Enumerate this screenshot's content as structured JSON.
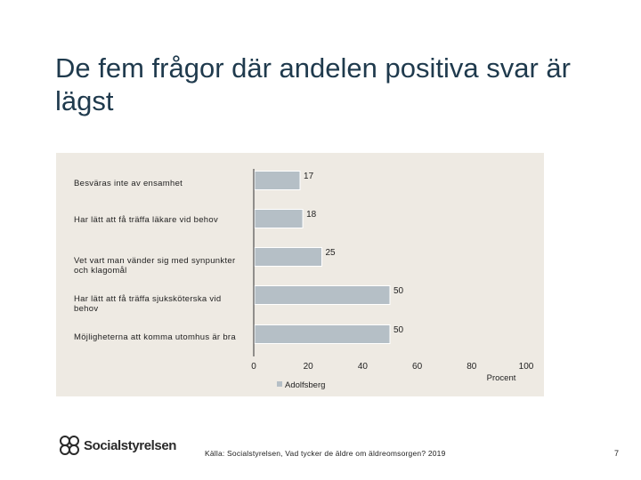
{
  "slide": {
    "title": "De fem frågor där andelen positiva svar är lägst",
    "source": "Källa: Socialstyrelsen, Vad tycker de äldre om äldreomsorgen? 2019",
    "page_number": "7",
    "logo_text": "Socialstyrelsen"
  },
  "chart_data": {
    "type": "bar",
    "orientation": "horizontal",
    "categories": [
      "Besväras inte av ensamhet",
      "Har lätt att få träffa läkare vid behov",
      "Vet vart man vänder sig med synpunkter och klagomål",
      "Har lätt att få träffa sjuksköterska vid behov",
      "Möjligheterna att komma utomhus är bra"
    ],
    "series": [
      {
        "name": "Adolfsberg",
        "values": [
          17,
          18,
          25,
          50,
          50
        ]
      }
    ],
    "xlabel": "Procent",
    "xlim": [
      0,
      100
    ],
    "xticks": [
      0,
      20,
      40,
      60,
      80,
      100
    ],
    "legend_position": "bottom",
    "colors": {
      "bar": "#b5bfc6",
      "bar_edge": "#ffffff",
      "panel": "#eeeae3",
      "axis": "#333333"
    }
  }
}
